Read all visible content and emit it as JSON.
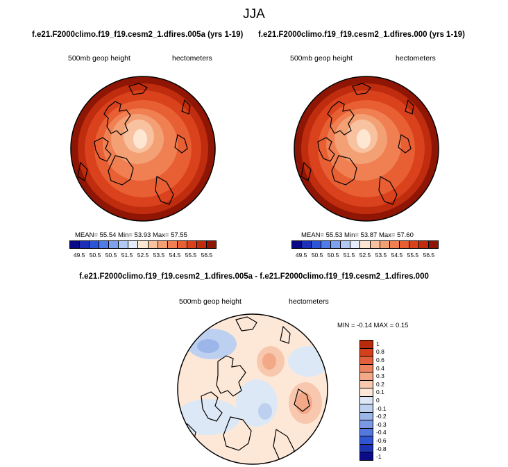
{
  "season": "JJA",
  "panels": [
    {
      "title": "f.e21.F2000climo.f19_f19.cesm2_1.dfires.005a (yrs 1-19)",
      "left_label": "500mb geop height",
      "right_label": "hectometers",
      "stats": "MEAN=  55.54   Min=  53.93   Max=  57.55"
    },
    {
      "title": "f.e21.F2000climo.f19_f19.cesm2_1.dfires.000 (yrs 1-19)",
      "left_label": "500mb geop height",
      "right_label": "hectometers",
      "stats": "MEAN=  55.53   Min=  53.87   Max=  57.60"
    }
  ],
  "abs_colorbar": {
    "colors": [
      "#0a0a86",
      "#1e2fb8",
      "#2d55d8",
      "#4f7ce8",
      "#7ea2ee",
      "#b3c9f3",
      "#e4ecfa",
      "#fde6d2",
      "#f8c2a0",
      "#f4a075",
      "#f08052",
      "#e85f33",
      "#d9421c",
      "#bf2c0e",
      "#8f1505"
    ],
    "tick_labels": [
      "49.5",
      "50.5",
      "50.5",
      "51.5",
      "52.5",
      "53.5",
      "54.5",
      "55.5",
      "56.5"
    ]
  },
  "diff": {
    "title": "f.e21.F2000climo.f19_f19.cesm2_1.dfires.005a - f.e21.F2000climo.f19_f19.cesm2_1.dfires.000",
    "left_label": "500mb geop height",
    "right_label": "hectometers",
    "stats": "MIN =  -0.14 MAX =   0.15"
  },
  "diff_colorbar": {
    "colors": [
      "#b72a0c",
      "#d2401c",
      "#e2603a",
      "#ec845f",
      "#f3a888",
      "#f8c8ae",
      "#fde8d8",
      "#dde8f6",
      "#bed0f0",
      "#9cb6ea",
      "#7a98e3",
      "#5478dd",
      "#3056d1",
      "#1c34b4",
      "#0b0b88"
    ],
    "tick_labels": [
      "1",
      "0.8",
      "0.6",
      "0.4",
      "0.3",
      "0.2",
      "0.1",
      "0",
      "-0.1",
      "-0.2",
      "-0.3",
      "-0.4",
      "-0.6",
      "-0.8",
      "-1"
    ]
  }
}
